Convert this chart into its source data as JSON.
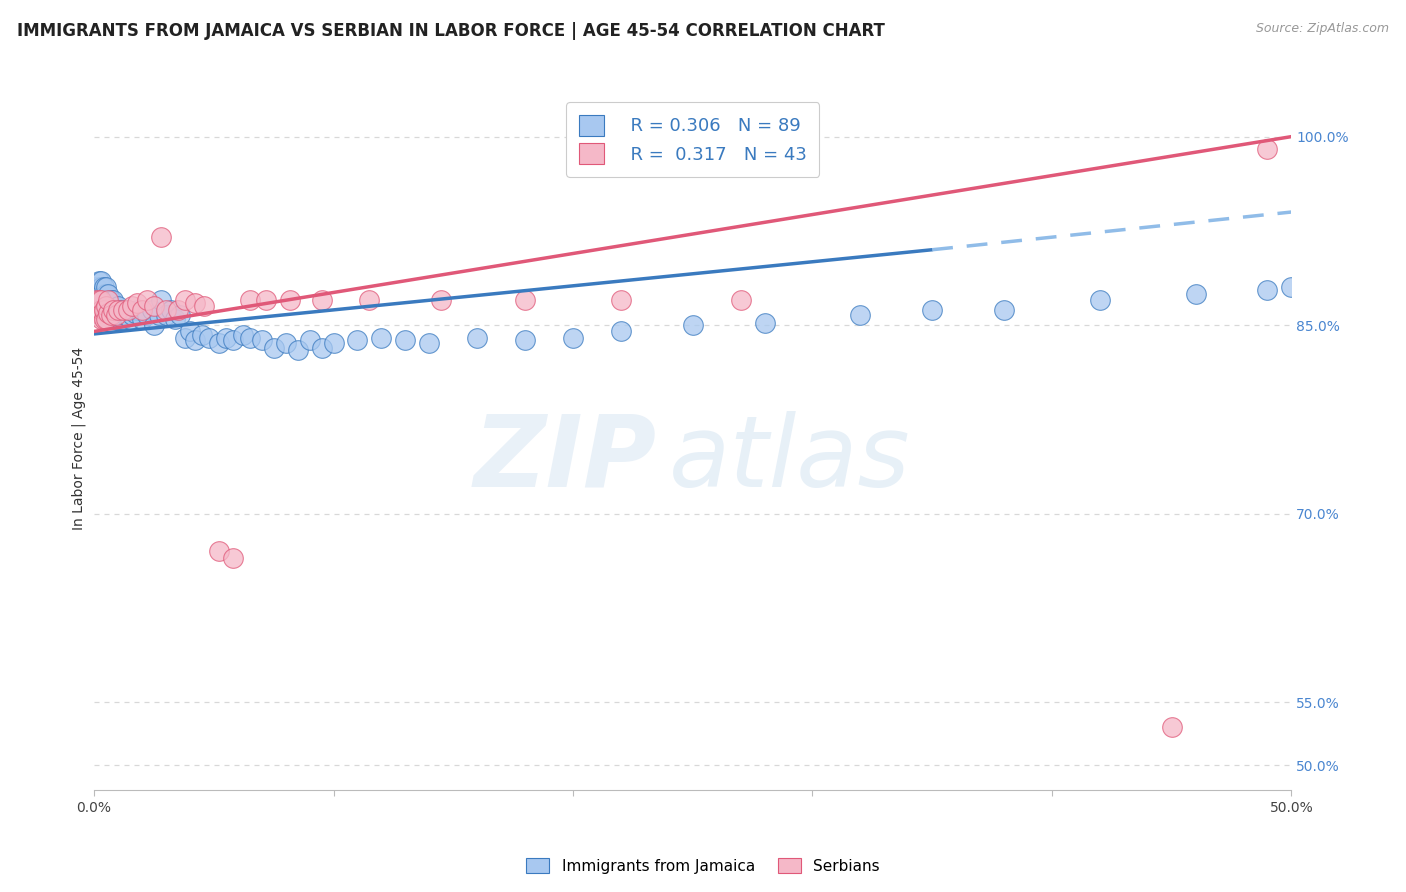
{
  "title": "IMMIGRANTS FROM JAMAICA VS SERBIAN IN LABOR FORCE | AGE 45-54 CORRELATION CHART",
  "source": "Source: ZipAtlas.com",
  "ylabel": "In Labor Force | Age 45-54",
  "xlim": [
    0.0,
    0.5
  ],
  "ylim": [
    0.48,
    1.04
  ],
  "color_jamaica": "#a8c8f0",
  "color_serbian": "#f5b8c8",
  "line_color_jamaica": "#3a7abf",
  "line_color_serbian": "#e05878",
  "line_color_dashed": "#90bce8",
  "watermark_zip": "ZIP",
  "watermark_atlas": "atlas",
  "background_color": "#ffffff",
  "grid_color": "#d8d8d8",
  "title_fontsize": 12,
  "axis_label_fontsize": 10,
  "tick_fontsize": 10,
  "jamaica_x": [
    0.001,
    0.001,
    0.001,
    0.002,
    0.002,
    0.002,
    0.002,
    0.003,
    0.003,
    0.003,
    0.003,
    0.003,
    0.004,
    0.004,
    0.004,
    0.004,
    0.004,
    0.005,
    0.005,
    0.005,
    0.005,
    0.005,
    0.006,
    0.006,
    0.006,
    0.006,
    0.007,
    0.007,
    0.007,
    0.008,
    0.008,
    0.008,
    0.009,
    0.009,
    0.01,
    0.01,
    0.011,
    0.011,
    0.012,
    0.013,
    0.014,
    0.015,
    0.016,
    0.017,
    0.018,
    0.02,
    0.022,
    0.024,
    0.025,
    0.027,
    0.028,
    0.03,
    0.032,
    0.034,
    0.036,
    0.038,
    0.04,
    0.042,
    0.045,
    0.048,
    0.052,
    0.055,
    0.058,
    0.062,
    0.065,
    0.07,
    0.075,
    0.08,
    0.085,
    0.09,
    0.095,
    0.1,
    0.11,
    0.12,
    0.13,
    0.14,
    0.16,
    0.18,
    0.2,
    0.22,
    0.25,
    0.28,
    0.32,
    0.35,
    0.38,
    0.42,
    0.46,
    0.49,
    0.5
  ],
  "jamaica_y": [
    0.86,
    0.87,
    0.88,
    0.86,
    0.87,
    0.875,
    0.885,
    0.86,
    0.87,
    0.875,
    0.88,
    0.885,
    0.86,
    0.865,
    0.87,
    0.875,
    0.88,
    0.86,
    0.865,
    0.87,
    0.875,
    0.88,
    0.855,
    0.86,
    0.87,
    0.875,
    0.855,
    0.86,
    0.87,
    0.855,
    0.862,
    0.87,
    0.855,
    0.862,
    0.855,
    0.865,
    0.855,
    0.862,
    0.855,
    0.858,
    0.862,
    0.855,
    0.858,
    0.86,
    0.862,
    0.855,
    0.858,
    0.862,
    0.85,
    0.858,
    0.87,
    0.858,
    0.862,
    0.855,
    0.858,
    0.84,
    0.845,
    0.838,
    0.842,
    0.84,
    0.836,
    0.84,
    0.838,
    0.842,
    0.84,
    0.838,
    0.832,
    0.836,
    0.83,
    0.838,
    0.832,
    0.836,
    0.838,
    0.84,
    0.838,
    0.836,
    0.84,
    0.838,
    0.84,
    0.845,
    0.85,
    0.852,
    0.858,
    0.862,
    0.862,
    0.87,
    0.875,
    0.878,
    0.88
  ],
  "serbian_x": [
    0.001,
    0.001,
    0.002,
    0.002,
    0.003,
    0.003,
    0.003,
    0.004,
    0.004,
    0.005,
    0.005,
    0.006,
    0.006,
    0.007,
    0.008,
    0.009,
    0.01,
    0.012,
    0.014,
    0.016,
    0.018,
    0.02,
    0.022,
    0.025,
    0.028,
    0.03,
    0.035,
    0.038,
    0.042,
    0.046,
    0.052,
    0.058,
    0.065,
    0.072,
    0.082,
    0.095,
    0.115,
    0.145,
    0.18,
    0.22,
    0.27,
    0.45,
    0.49
  ],
  "serbian_y": [
    0.86,
    0.87,
    0.86,
    0.87,
    0.855,
    0.862,
    0.87,
    0.855,
    0.862,
    0.855,
    0.865,
    0.86,
    0.87,
    0.858,
    0.862,
    0.858,
    0.862,
    0.862,
    0.862,
    0.865,
    0.868,
    0.862,
    0.87,
    0.865,
    0.92,
    0.862,
    0.862,
    0.87,
    0.868,
    0.865,
    0.67,
    0.665,
    0.87,
    0.87,
    0.87,
    0.87,
    0.87,
    0.87,
    0.87,
    0.87,
    0.87,
    0.53,
    0.99
  ],
  "trend_jamaica_x0": 0.0,
  "trend_jamaica_x1": 0.35,
  "trend_jamaica_y0": 0.843,
  "trend_jamaica_y1": 0.91,
  "trend_dashed_x0": 0.35,
  "trend_dashed_x1": 0.5,
  "trend_dashed_y0": 0.91,
  "trend_dashed_y1": 0.94,
  "trend_serbian_x0": 0.0,
  "trend_serbian_x1": 0.5,
  "trend_serbian_y0": 0.845,
  "trend_serbian_y1": 1.0,
  "ytick_positions": [
    0.5,
    0.55,
    0.7,
    0.85,
    1.0
  ],
  "ytick_labels": [
    "50.0%",
    "55.0%",
    "70.0%",
    "85.0%",
    "100.0%"
  ]
}
